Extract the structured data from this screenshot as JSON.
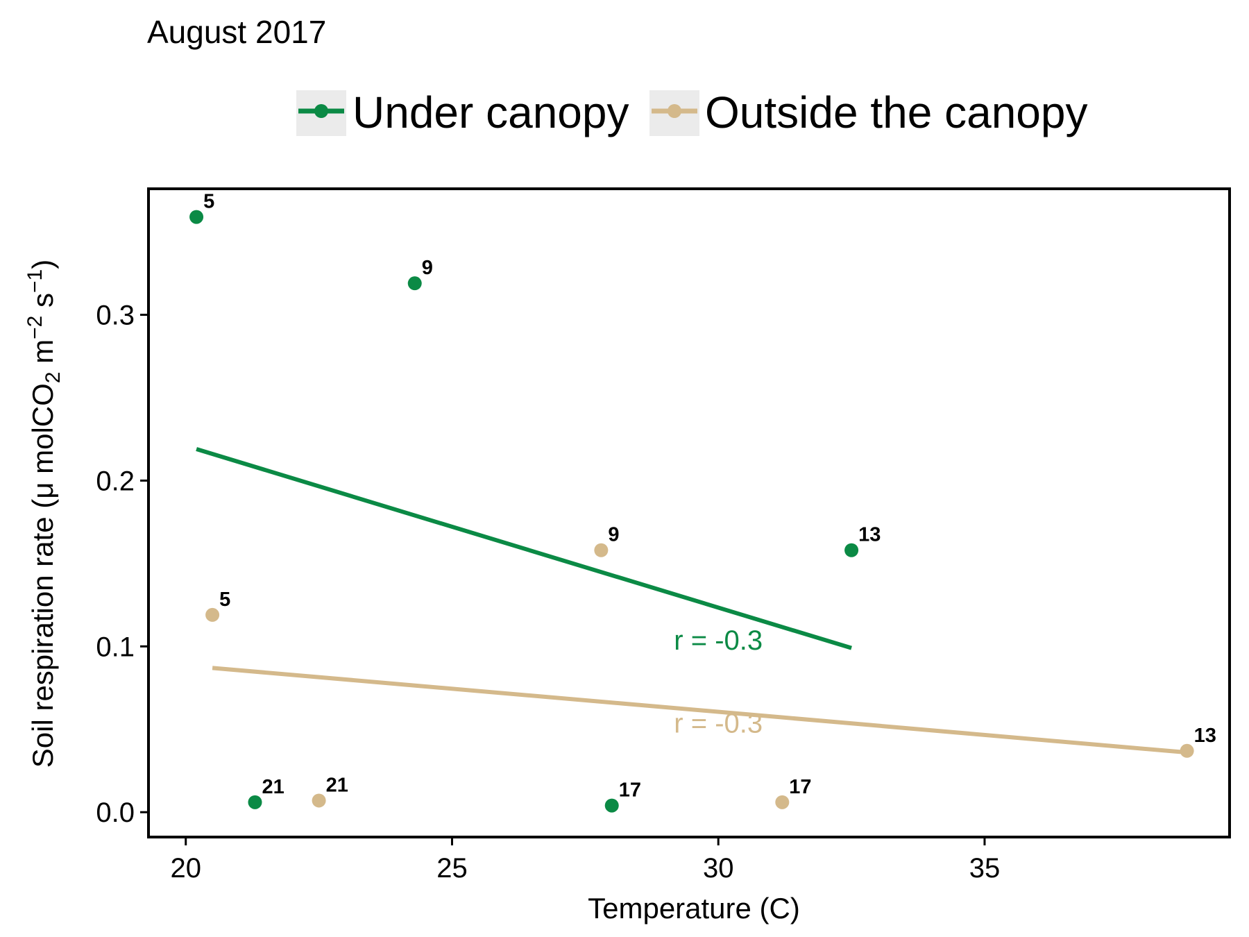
{
  "chart_data": {
    "type": "scatter",
    "title": "August 2017",
    "xlabel": "Temperature (C)",
    "ylabel": {
      "prefix": "Soil respiration rate  (",
      "mu": "μ",
      "mol": " molCO",
      "sub2": "2",
      "m": " m",
      "sup_m": "−2",
      "s": " s",
      "sup_s": "−1",
      "suffix": ")"
    },
    "xlim": [
      19.3,
      39.6
    ],
    "ylim": [
      -0.015,
      0.376
    ],
    "x_ticks": [
      20,
      25,
      30,
      35
    ],
    "y_ticks": [
      0.0,
      0.1,
      0.2,
      0.3
    ],
    "x_tick_labels": [
      "20",
      "25",
      "30",
      "35"
    ],
    "y_tick_labels": [
      "0.0",
      "0.1",
      "0.2",
      "0.3"
    ],
    "grid": false,
    "legend_position": "top",
    "series": [
      {
        "name": "Under canopy",
        "color": "#0b8a45",
        "points": [
          {
            "x": 20.2,
            "y": 0.359,
            "label": "5"
          },
          {
            "x": 24.3,
            "y": 0.319,
            "label": "9"
          },
          {
            "x": 32.5,
            "y": 0.158,
            "label": "13"
          },
          {
            "x": 28.0,
            "y": 0.004,
            "label": "17"
          },
          {
            "x": 21.3,
            "y": 0.006,
            "label": "21"
          }
        ],
        "fit": {
          "x": [
            20.2,
            32.5
          ],
          "y": [
            0.219,
            0.099
          ]
        },
        "r_label": "r = -0.3",
        "r_pos": {
          "x": 30.0,
          "y": 0.098
        }
      },
      {
        "name": "Outside the canopy",
        "color": "#d4b98b",
        "points": [
          {
            "x": 20.5,
            "y": 0.119,
            "label": "5"
          },
          {
            "x": 27.8,
            "y": 0.158,
            "label": "9"
          },
          {
            "x": 38.8,
            "y": 0.037,
            "label": "13"
          },
          {
            "x": 31.2,
            "y": 0.006,
            "label": "17"
          },
          {
            "x": 22.5,
            "y": 0.007,
            "label": "21"
          }
        ],
        "fit": {
          "x": [
            20.5,
            38.8
          ],
          "y": [
            0.087,
            0.036
          ]
        },
        "r_label": "r = -0.3",
        "r_pos": {
          "x": 30.0,
          "y": 0.048
        }
      }
    ]
  }
}
